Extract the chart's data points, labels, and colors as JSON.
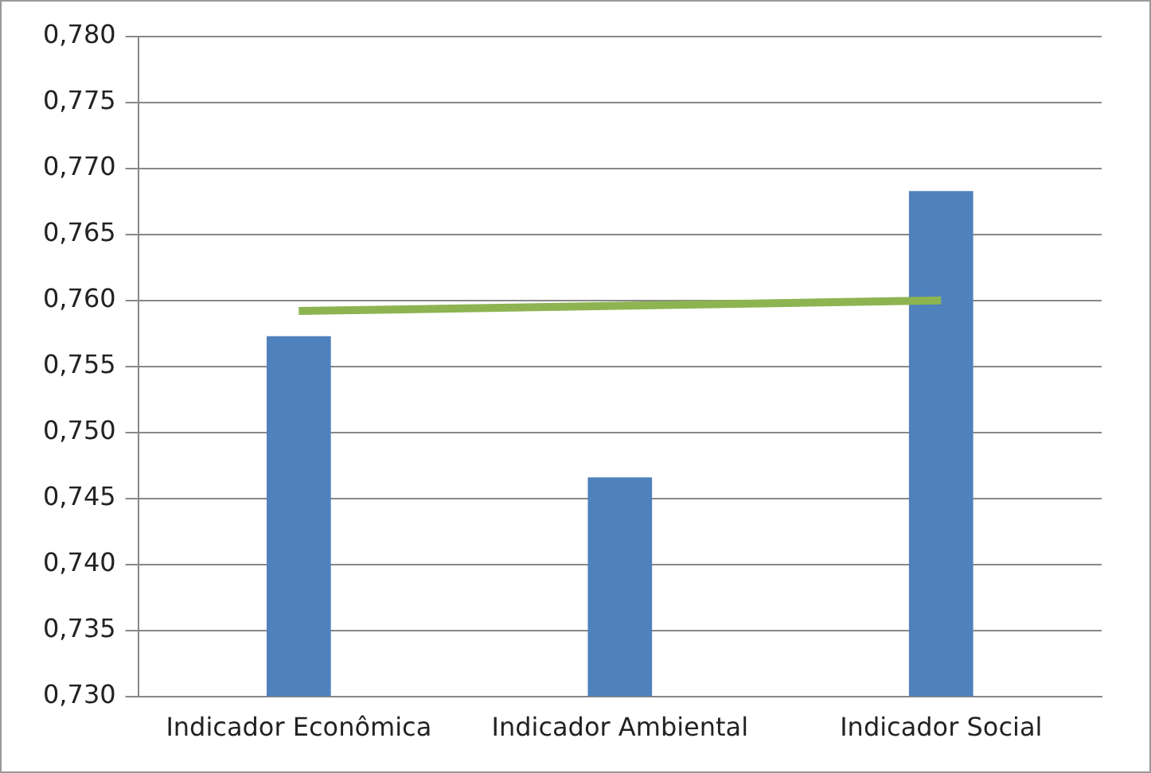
{
  "chart_data": {
    "type": "bar",
    "categories": [
      "Indicador Econômica",
      "Indicador Ambiental",
      "Indicador Social"
    ],
    "series": [
      {
        "color": "#4f81bd",
        "values": [
          0.7573,
          0.7466,
          0.7683
        ]
      },
      {
        "type": "line",
        "color": "#8db451",
        "values": [
          0.7592,
          0.7596,
          0.76
        ]
      }
    ],
    "ylim": [
      0.73,
      0.78
    ],
    "yticks": [
      {
        "value": 0.73,
        "label": "0,730"
      },
      {
        "value": 0.735,
        "label": "0,735"
      },
      {
        "value": 0.74,
        "label": "0,740"
      },
      {
        "value": 0.745,
        "label": "0,745"
      },
      {
        "value": 0.75,
        "label": "0,750"
      },
      {
        "value": 0.755,
        "label": "0,755"
      },
      {
        "value": 0.76,
        "label": "0,760"
      },
      {
        "value": 0.765,
        "label": "0,765"
      },
      {
        "value": 0.77,
        "label": "0,770"
      },
      {
        "value": 0.775,
        "label": "0,775"
      },
      {
        "value": 0.78,
        "label": "0,780"
      }
    ],
    "grid": "y",
    "legend": false
  }
}
